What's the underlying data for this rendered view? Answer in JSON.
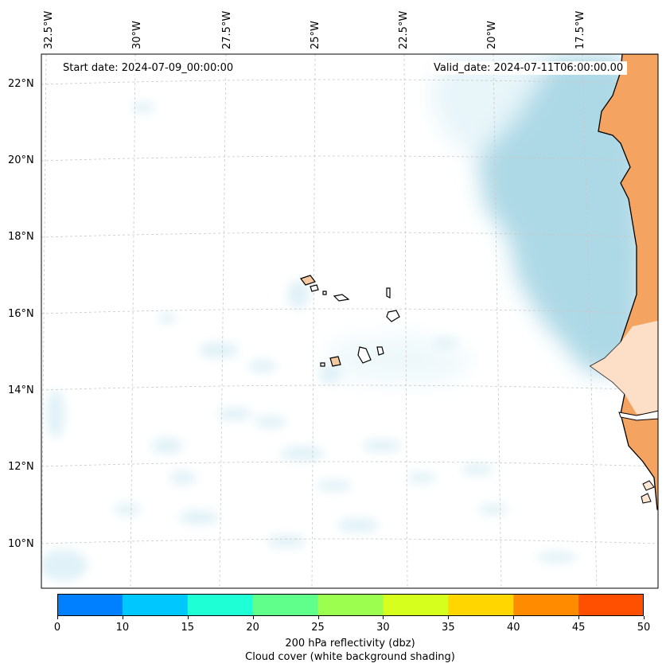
{
  "map": {
    "longitude_labels": [
      "32.5°W",
      "30°W",
      "27.5°W",
      "25°W",
      "22.5°W",
      "20°W",
      "17.5°W"
    ],
    "latitude_labels": [
      "22°N",
      "20°N",
      "18°N",
      "16°N",
      "14°N",
      "12°N",
      "10°N"
    ],
    "start_date": "Start date: 2024-07-09_00:00:00",
    "valid_date": "Valid_date: 2024-07-11T06:00:00.00",
    "colors": {
      "land": "#f4a460",
      "cloud": "#a9d6e5",
      "coastline": "#000000",
      "gridline": "#c8c8c8"
    }
  },
  "colorbar": {
    "ticks": [
      "0",
      "10",
      "15",
      "20",
      "25",
      "30",
      "35",
      "40",
      "45",
      "50"
    ],
    "colors": [
      "#0080ff",
      "#00c8ff",
      "#1effd6",
      "#60ff8c",
      "#9cff50",
      "#d6ff1e",
      "#ffd600",
      "#ff8c00",
      "#ff4f00"
    ],
    "label_line1": "200 hPa reflectivity (dbz)",
    "label_line2": "Cloud cover (white background shading)"
  }
}
